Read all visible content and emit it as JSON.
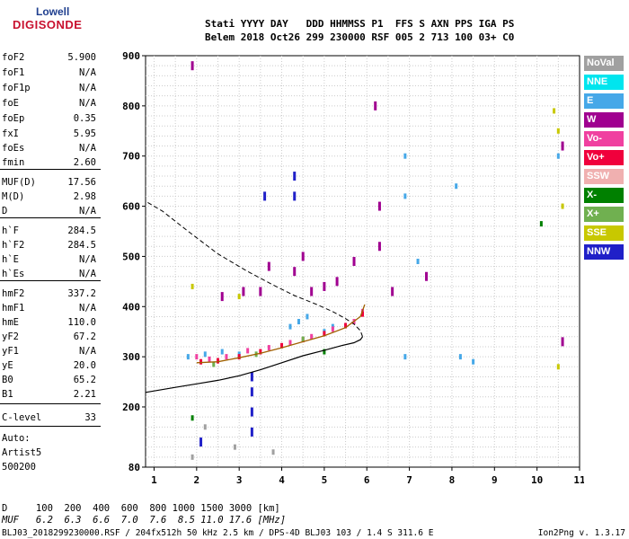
{
  "logo": {
    "line1": "Lowell",
    "line2": "DIGISONDE"
  },
  "header": {
    "row1": "Stati YYYY DAY   DDD HHMMSS P1  FFS S AXN PPS IGA PS",
    "row2": "Belem 2018 Oct26 299 230000 RSF 005 2 713 100 03+ C0"
  },
  "params": [
    {
      "name": "foF2",
      "value": "5.900"
    },
    {
      "name": "foF1",
      "value": "N/A"
    },
    {
      "name": "foF1p",
      "value": "N/A"
    },
    {
      "name": "foE",
      "value": "N/A"
    },
    {
      "name": "foEp",
      "value": "0.35"
    },
    {
      "name": "fxI",
      "value": "5.95"
    },
    {
      "name": "foEs",
      "value": "N/A"
    },
    {
      "name": "fmin",
      "value": "2.60"
    },
    {
      "name": "MUF(D)",
      "value": "17.56"
    },
    {
      "name": "M(D)",
      "value": "2.98"
    },
    {
      "name": "D",
      "value": "N/A"
    },
    {
      "name": "h`F",
      "value": "284.5"
    },
    {
      "name": "h`F2",
      "value": "284.5"
    },
    {
      "name": "h`E",
      "value": "N/A"
    },
    {
      "name": "h`Es",
      "value": "N/A"
    },
    {
      "name": "hmF2",
      "value": "337.2"
    },
    {
      "name": "hmF1",
      "value": "N/A"
    },
    {
      "name": "hmE",
      "value": "110.0"
    },
    {
      "name": "yF2",
      "value": "67.2"
    },
    {
      "name": "yF1",
      "value": "N/A"
    },
    {
      "name": "yE",
      "value": "20.0"
    },
    {
      "name": "B0",
      "value": "65.2"
    },
    {
      "name": "B1",
      "value": "2.21"
    },
    {
      "name": "C-level",
      "value": "33"
    }
  ],
  "auto": {
    "line1": "Auto:",
    "line2": "Artist5",
    "line3": "500200"
  },
  "legend": [
    {
      "label": "NoVal",
      "color": "#a0a0a0"
    },
    {
      "label": "NNE",
      "color": "#00e5ee"
    },
    {
      "label": "E",
      "color": "#46a8e8"
    },
    {
      "label": "W",
      "color": "#a00090"
    },
    {
      "label": "Vo-",
      "color": "#f040a0"
    },
    {
      "label": "Vo+",
      "color": "#f0003c"
    },
    {
      "label": "SSW",
      "color": "#f0b0b0"
    },
    {
      "label": "X-",
      "color": "#008000"
    },
    {
      "label": "X+",
      "color": "#70b050"
    },
    {
      "label": "SSE",
      "color": "#c8c800"
    },
    {
      "label": "NNW",
      "color": "#2020c8"
    }
  ],
  "muf_table": {
    "d_row": "D     100  200  400  600  800 1000 1500 3000 [km]",
    "muf_row": "MUF   6.2  6.3  6.6  7.0  7.6  8.5 11.0 17.6 [MHz]"
  },
  "footer": {
    "left": "BLJ03_2018299230000.RSF / 204fx512h 50 kHz 2.5 km / DPS-4D BLJ03 103 / 1.4 S 311.6 E",
    "right": "Ion2Png v. 1.3.17"
  },
  "chart_data": {
    "type": "scatter",
    "xlabel": "",
    "ylabel": "",
    "xlim": [
      0.8,
      11
    ],
    "ylim": [
      80,
      900
    ],
    "x_ticks": [
      1,
      2,
      3,
      4,
      5,
      6,
      7,
      8,
      9,
      10,
      11
    ],
    "y_ticks": [
      80,
      200,
      300,
      400,
      500,
      600,
      700,
      800,
      900
    ],
    "grid": true,
    "profile_solid": [
      [
        0.8,
        229
      ],
      [
        1.5,
        239
      ],
      [
        2,
        246
      ],
      [
        2.5,
        253
      ],
      [
        3,
        262
      ],
      [
        3.5,
        274
      ],
      [
        4,
        288
      ],
      [
        4.5,
        302
      ],
      [
        5,
        313
      ],
      [
        5.4,
        322
      ],
      [
        5.7,
        328
      ],
      [
        5.85,
        334
      ],
      [
        5.9,
        340
      ],
      [
        5.85,
        352
      ],
      [
        5.7,
        365
      ],
      [
        5.5,
        376
      ],
      [
        5.2,
        390
      ],
      [
        4.8,
        405
      ],
      [
        4.3,
        422
      ],
      [
        3.8,
        443
      ],
      [
        3.2,
        470
      ],
      [
        2.5,
        505
      ],
      [
        1.8,
        550
      ],
      [
        1.2,
        590
      ],
      [
        0.8,
        610
      ]
    ],
    "trace_fit": [
      [
        2,
        288
      ],
      [
        2.5,
        290
      ],
      [
        3,
        298
      ],
      [
        3.5,
        307
      ],
      [
        4,
        318
      ],
      [
        4.5,
        330
      ],
      [
        5,
        342
      ],
      [
        5.5,
        358
      ],
      [
        5.85,
        380
      ],
      [
        5.95,
        404
      ]
    ],
    "series": [
      {
        "name": "E",
        "color": "#46a8e8",
        "points": [
          [
            1.8,
            300
          ],
          [
            2.2,
            305
          ],
          [
            2.6,
            310
          ],
          [
            3.0,
            305
          ],
          [
            4.2,
            360
          ],
          [
            4.4,
            370
          ],
          [
            4.6,
            380
          ],
          [
            5.0,
            350
          ],
          [
            5.2,
            360
          ],
          [
            6.9,
            300
          ],
          [
            6.9,
            620
          ],
          [
            6.9,
            700
          ],
          [
            7.2,
            490
          ],
          [
            8.1,
            640
          ],
          [
            8.2,
            300
          ],
          [
            10.5,
            700
          ],
          [
            8.5,
            290
          ]
        ]
      },
      {
        "name": "W",
        "color": "#a00090",
        "points": [
          [
            1.9,
            880
          ],
          [
            2.6,
            420
          ],
          [
            3.1,
            430
          ],
          [
            3.5,
            430
          ],
          [
            3.7,
            480
          ],
          [
            4.3,
            470
          ],
          [
            4.5,
            500
          ],
          [
            4.7,
            430
          ],
          [
            5.0,
            440
          ],
          [
            5.3,
            450
          ],
          [
            5.7,
            490
          ],
          [
            6.3,
            520
          ],
          [
            6.3,
            600
          ],
          [
            6.6,
            430
          ],
          [
            6.2,
            800
          ],
          [
            7.4,
            460
          ],
          [
            10.6,
            720
          ],
          [
            10.6,
            330
          ]
        ]
      },
      {
        "name": "Vo-",
        "color": "#f040a0",
        "points": [
          [
            2.0,
            300
          ],
          [
            2.3,
            295
          ],
          [
            2.7,
            300
          ],
          [
            3.2,
            312
          ],
          [
            3.7,
            318
          ],
          [
            4.2,
            328
          ],
          [
            4.7,
            340
          ],
          [
            5.2,
            355
          ],
          [
            5.7,
            370
          ],
          [
            5.9,
            390
          ]
        ]
      },
      {
        "name": "Vo+",
        "color": "#f0003c",
        "points": [
          [
            2.1,
            290
          ],
          [
            2.5,
            292
          ],
          [
            3.0,
            300
          ],
          [
            3.5,
            310
          ],
          [
            4.0,
            322
          ],
          [
            4.5,
            334
          ],
          [
            5.0,
            346
          ],
          [
            5.5,
            362
          ],
          [
            5.9,
            385
          ]
        ]
      },
      {
        "name": "NNW",
        "color": "#2020c8",
        "points": [
          [
            3.3,
            260
          ],
          [
            3.3,
            230
          ],
          [
            3.3,
            190
          ],
          [
            3.3,
            150
          ],
          [
            4.3,
            620
          ],
          [
            4.3,
            660
          ],
          [
            3.6,
            620
          ],
          [
            2.1,
            130
          ]
        ]
      },
      {
        "name": "SSE",
        "color": "#c8c800",
        "points": [
          [
            10.4,
            790
          ],
          [
            10.5,
            750
          ],
          [
            10.6,
            600
          ],
          [
            10.5,
            280
          ],
          [
            1.9,
            440
          ],
          [
            3.0,
            420
          ]
        ]
      },
      {
        "name": "X-",
        "color": "#008000",
        "points": [
          [
            1.9,
            178
          ],
          [
            10.1,
            565
          ],
          [
            5.0,
            310
          ]
        ]
      },
      {
        "name": "X+",
        "color": "#70b050",
        "points": [
          [
            2.4,
            285
          ],
          [
            3.4,
            305
          ],
          [
            4.5,
            335
          ]
        ]
      },
      {
        "name": "NoVal",
        "color": "#a0a0a0",
        "points": [
          [
            1.9,
            100
          ],
          [
            2.2,
            160
          ],
          [
            2.9,
            120
          ],
          [
            3.8,
            110
          ]
        ]
      }
    ]
  }
}
